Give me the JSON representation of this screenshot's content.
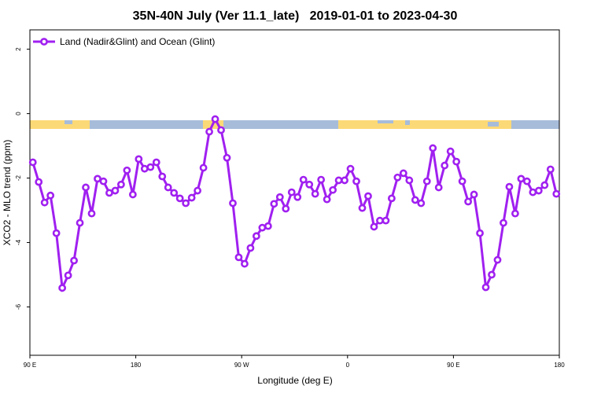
{
  "chart_data": {
    "type": "line",
    "title": "35N-40N July (Ver 11.1_late)   2019-01-01 to 2023-04-30",
    "x_label": "Longitude (deg E)",
    "y_label": "XCO2 - MLO trend (ppm)",
    "x": [
      92.5,
      97.5,
      102.5,
      107.5,
      112.5,
      117.5,
      122.5,
      127.5,
      132.5,
      137.5,
      142.5,
      147.5,
      152.5,
      157.5,
      162.5,
      167.5,
      172.5,
      177.5,
      182.5,
      187.5,
      192.5,
      197.5,
      202.5,
      207.5,
      212.5,
      217.5,
      222.5,
      227.5,
      232.5,
      237.5,
      242.5,
      247.5,
      252.5,
      257.5,
      262.5,
      267.5,
      272.5,
      277.5,
      282.5,
      287.5,
      292.5,
      297.5,
      302.5,
      307.5,
      312.5,
      317.5,
      322.5,
      327.5,
      332.5,
      337.5,
      342.5,
      347.5,
      352.5,
      357.5,
      362.5,
      367.5,
      372.5,
      377.5,
      382.5,
      387.5,
      392.5,
      397.5,
      402.5,
      407.5,
      412.5,
      417.5,
      422.5,
      427.5,
      432.5,
      437.5,
      442.5,
      447.5,
      452.5,
      457.5,
      462.5,
      467.5,
      472.5,
      477.5,
      482.5,
      487.5,
      492.5,
      497.5,
      502.5,
      507.5,
      512.5,
      517.5,
      522.5,
      527.5,
      532.5,
      537.5
    ],
    "series": [
      {
        "name": "Land (Nadir&Glint) and Ocean (Glint)",
        "color": "#a020f0",
        "values": [
          -1.51,
          -2.12,
          -2.76,
          -2.54,
          -3.71,
          -5.41,
          -5.02,
          -4.56,
          -3.39,
          -2.29,
          -3.1,
          -2.02,
          -2.1,
          -2.46,
          -2.39,
          -2.2,
          -1.76,
          -2.51,
          -1.41,
          -1.71,
          -1.66,
          -1.51,
          -1.95,
          -2.29,
          -2.46,
          -2.63,
          -2.78,
          -2.61,
          -2.39,
          -1.68,
          -0.56,
          -0.17,
          -0.51,
          -1.37,
          -2.78,
          -4.46,
          -4.66,
          -4.17,
          -3.8,
          -3.54,
          -3.49,
          -2.8,
          -2.59,
          -2.95,
          -2.44,
          -2.59,
          -2.05,
          -2.2,
          -2.49,
          -2.05,
          -2.66,
          -2.37,
          -2.07,
          -2.07,
          -1.71,
          -2.1,
          -2.93,
          -2.56,
          -3.51,
          -3.32,
          -3.32,
          -2.63,
          -1.98,
          -1.85,
          -2.07,
          -2.68,
          -2.78,
          -2.1,
          -1.07,
          -2.29,
          -1.61,
          -1.17,
          -1.49,
          -2.1,
          -2.73,
          -2.51,
          -3.71,
          -5.39,
          -5.0,
          -4.54,
          -3.39,
          -2.27,
          -3.1,
          -2.02,
          -2.1,
          -2.44,
          -2.39,
          -2.22,
          -1.73,
          -2.49
        ]
      }
    ],
    "xlim": [
      90,
      540
    ],
    "xticks": [
      {
        "value": 90,
        "label": "90 E"
      },
      180,
      {
        "value": 270,
        "label": "90 W"
      },
      {
        "value": 360,
        "label": "0"
      },
      {
        "value": 450,
        "label": "90 E"
      },
      {
        "value": 540,
        "label": "180"
      }
    ],
    "ylim": [
      -7.5,
      2.6
    ],
    "yticks": [
      -6,
      -4,
      -2,
      0,
      2
    ],
    "legend": "top-left"
  }
}
